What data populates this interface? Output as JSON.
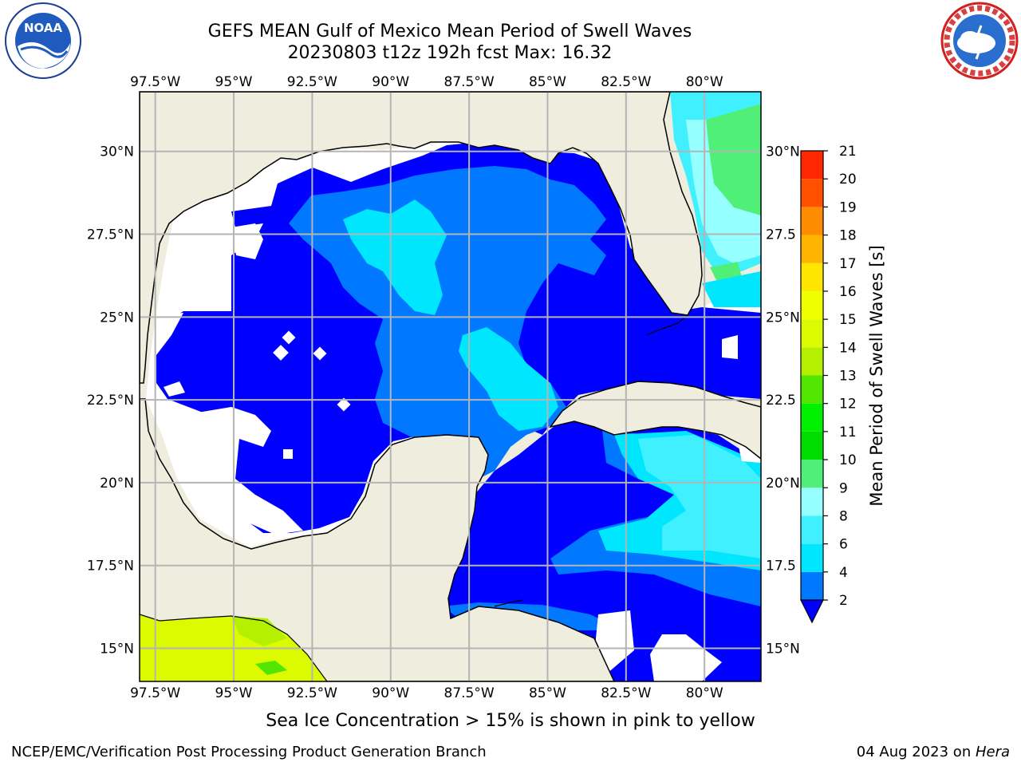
{
  "header": {
    "title_line1": "GEFS MEAN Gulf of Mexico Mean Period of Swell Waves",
    "title_line2": "20230803 t12z 192h fcst   Max: 16.32"
  },
  "logos": {
    "left": "noaa-logo",
    "right": "national-weather-service-logo"
  },
  "map": {
    "lon_labels": [
      "97.5°W",
      "95°W",
      "92.5°W",
      "90°W",
      "87.5°W",
      "85°W",
      "82.5°W",
      "80°W"
    ],
    "lon_values": [
      -97.5,
      -95,
      -92.5,
      -90,
      -87.5,
      -85,
      -82.5,
      -80
    ],
    "lat_labels": [
      "15°N",
      "17.5°N",
      "20°N",
      "22.5°N",
      "25°N",
      "27.5°N",
      "30°N"
    ],
    "lat_values": [
      15,
      17.5,
      20,
      22.5,
      25,
      27.5,
      30
    ],
    "right_lat_labels": [
      "15°N",
      "17.5",
      "20°N",
      "22.5",
      "25°N",
      "27.5",
      "30°N"
    ],
    "extent": {
      "lon": [
        -98,
        -78.2
      ],
      "lat": [
        14,
        31.8
      ]
    },
    "colors": {
      "land": "#efeede",
      "coast": "#000000",
      "grid": "#b4b4b4",
      "no_data": "#ffffff",
      "ice_field": "#dcfa00"
    }
  },
  "colorbar": {
    "label": "Mean Period of Swell Waves [s]",
    "ticks": [
      "2",
      "4",
      "6",
      "8",
      "9",
      "10",
      "11",
      "12",
      "13",
      "14",
      "15",
      "16",
      "17",
      "18",
      "19",
      "20",
      "21"
    ],
    "levels": [
      2,
      4,
      6,
      8,
      9,
      10,
      11,
      12,
      13,
      14,
      15,
      16,
      17,
      18,
      19,
      20,
      21
    ],
    "colors": [
      "#0078ff",
      "#00e6ff",
      "#40f0ff",
      "#96ffff",
      "#50f078",
      "#00dc00",
      "#00f000",
      "#50e600",
      "#b4f000",
      "#dcfa00",
      "#f0ff00",
      "#ffe600",
      "#ffb400",
      "#ff8c00",
      "#ff5000",
      "#ff2800",
      "#ff0000"
    ],
    "under_color": "#0000ff"
  },
  "caption": "Sea Ice Concentration > 15% is shown in pink to yellow",
  "footer": {
    "left": "NCEP/EMC/Verification Post Processing Product Generation Branch",
    "right_date": "04 Aug 2023 on ",
    "right_host": "Hera"
  }
}
